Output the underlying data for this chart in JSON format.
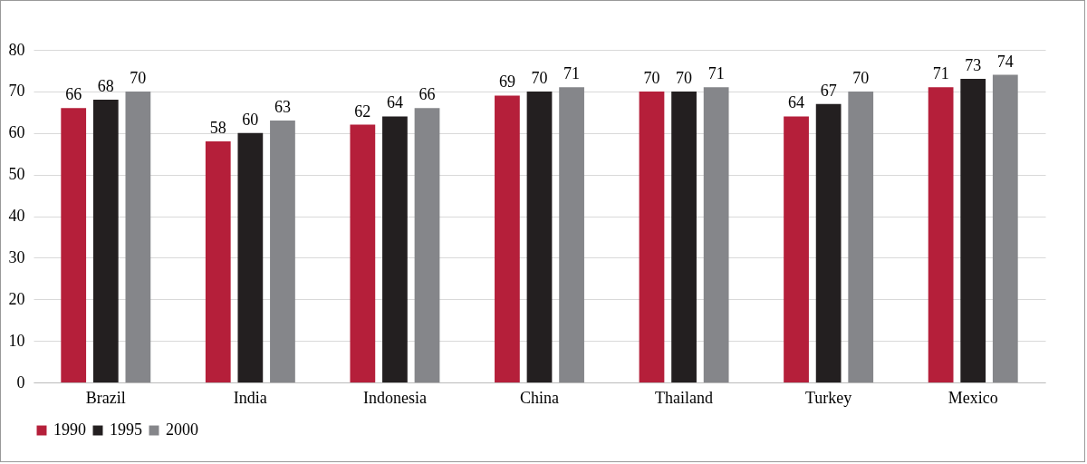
{
  "chart_data": {
    "type": "bar",
    "categories": [
      "Brazil",
      "India",
      "Indonesia",
      "China",
      "Thailand",
      "Turkey",
      "Mexico"
    ],
    "series": [
      {
        "name": "1990",
        "color": "#b51f3a",
        "values": [
          66,
          58,
          62,
          69,
          70,
          64,
          71
        ]
      },
      {
        "name": "1995",
        "color": "#231f20",
        "values": [
          68,
          60,
          64,
          70,
          70,
          67,
          73
        ]
      },
      {
        "name": "2000",
        "color": "#85868a",
        "values": [
          70,
          63,
          66,
          71,
          71,
          70,
          74
        ]
      }
    ],
    "ylim": [
      0,
      80
    ],
    "yticks": [
      0,
      10,
      20,
      30,
      40,
      50,
      60,
      70,
      80
    ],
    "grid": "y",
    "legend": "bottom",
    "data_labels": true
  }
}
